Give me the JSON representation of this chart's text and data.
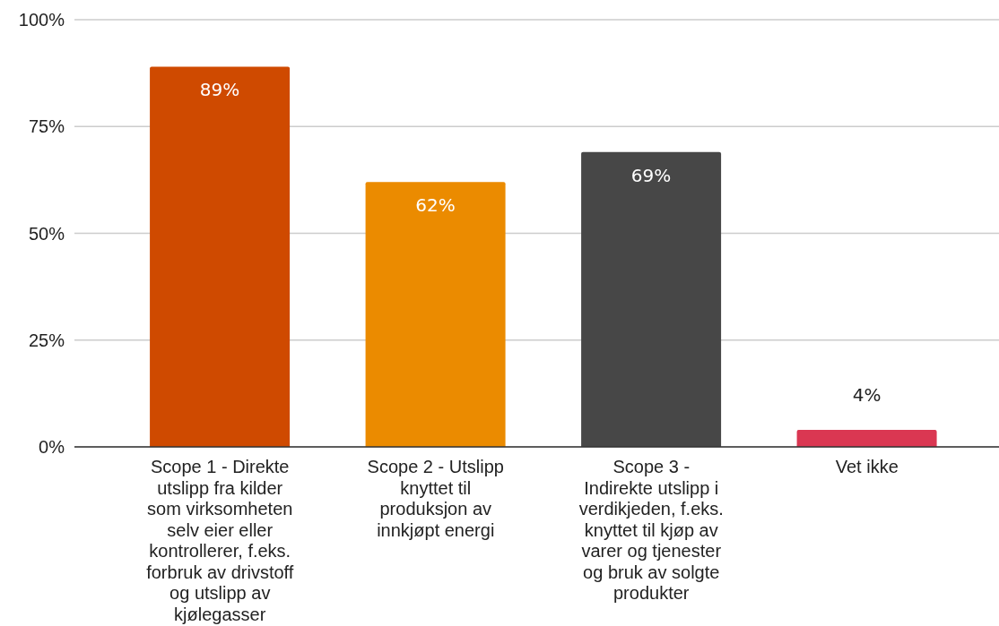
{
  "chart_data": {
    "type": "bar",
    "categories": [
      "Scope 1 - Direkte utslipp fra kilder som virksomheten selv eier eller kontrollerer, f.eks. forbruk av drivstoff og utslipp av kjølegasser",
      "Scope 2 - Utslipp knyttet til produksjon av innkjøpt energi",
      "Scope 3 - Indirekte utslipp i verdikjeden, f.eks. knyttet til kjøp av varer og tjenester og bruk av solgte produkter",
      "Vet ikke"
    ],
    "values": [
      89,
      62,
      69,
      4
    ],
    "colors": [
      "#cf4a00",
      "#eb8b00",
      "#474747",
      "#da3752"
    ],
    "ylim": [
      0,
      100
    ],
    "yticks": [
      {
        "value": 0,
        "label": "0%"
      },
      {
        "value": 25,
        "label": "25%"
      },
      {
        "value": 50,
        "label": "50%"
      },
      {
        "value": 75,
        "label": "75%"
      },
      {
        "value": 100,
        "label": "100%"
      }
    ],
    "grid": "y",
    "value_labels": [
      "89%",
      "62%",
      "69%",
      "4%"
    ]
  }
}
